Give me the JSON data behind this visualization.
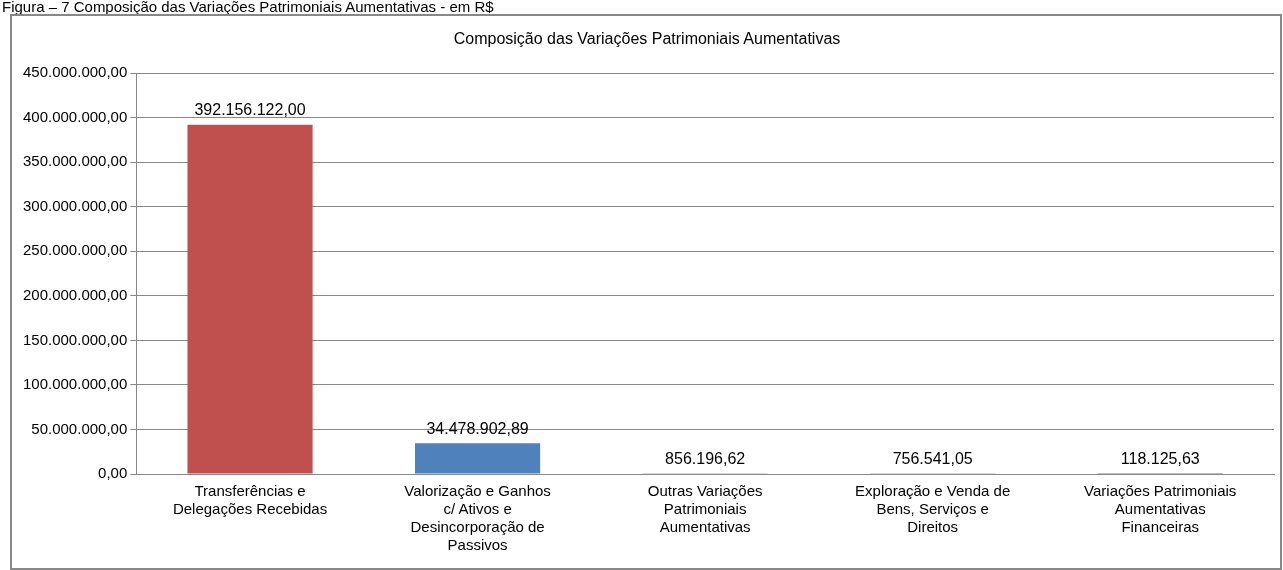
{
  "chart_data": {
    "type": "bar",
    "title": "Composição das Variações Patrimoniais Aumentativas",
    "annotations": [
      "Figura – 7 Composição das Variações Patrimoniais Aumentativas - em R$"
    ],
    "categories": [
      "Transferências e Delegações Recebidas",
      "Valorização e Ganhos c/ Ativos e Desincorporação de Passivos",
      "Outras Variações Patrimoniais Aumentativas",
      "Exploração e Venda de Bens, Serviços e Direitos",
      "Variações Patrimoniais Aumentativas Financeiras"
    ],
    "values": [
      392156122.0,
      34478902.89,
      856196.62,
      756541.05,
      118125.63
    ],
    "colors": [
      "#c0504d",
      "#4f81bd",
      "#4f81bd",
      "#4f81bd",
      "#4f81bd"
    ],
    "value_labels": [
      "392.156.122,00",
      "34.478.902,89",
      "856.196,62",
      "756.541,05",
      "118.125,63"
    ],
    "ylim": [
      0,
      450000000
    ],
    "yticks": [
      {
        "value": 0,
        "label": "0,00"
      },
      {
        "value": 50000000,
        "label": "50.000.000,00"
      },
      {
        "value": 100000000,
        "label": "100.000.000,00"
      },
      {
        "value": 150000000,
        "label": "150.000.000,00"
      },
      {
        "value": 200000000,
        "label": "200.000.000,00"
      },
      {
        "value": 250000000,
        "label": "250.000.000,00"
      },
      {
        "value": 300000000,
        "label": "300.000.000,00"
      },
      {
        "value": 350000000,
        "label": "350.000.000,00"
      },
      {
        "value": 400000000,
        "label": "400.000.000,00"
      },
      {
        "value": 450000000,
        "label": "450.000.000,00"
      }
    ],
    "grid": "y",
    "legend": false
  }
}
